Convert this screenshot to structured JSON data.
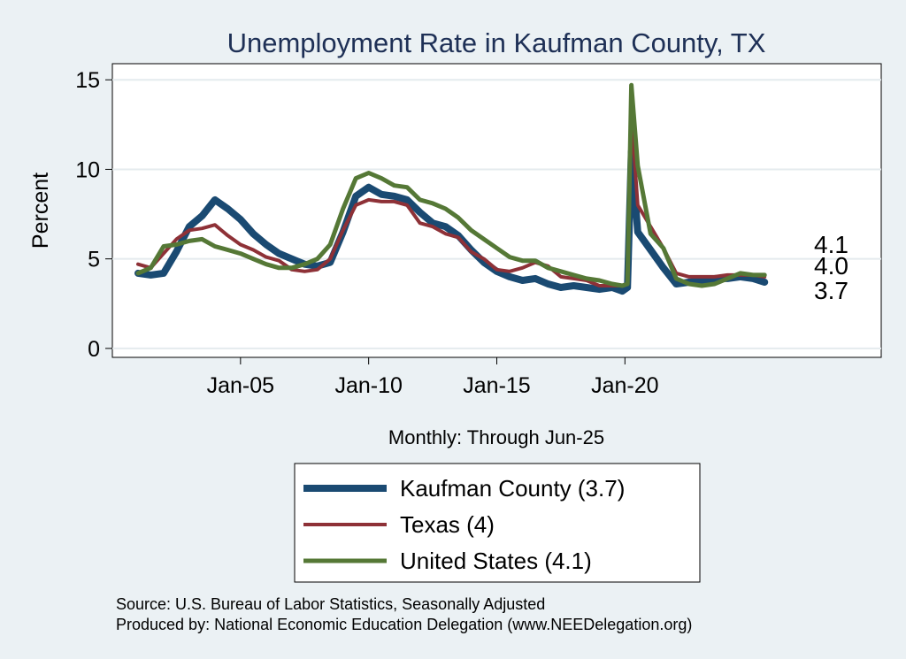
{
  "chart_data": {
    "type": "line",
    "title": "Unemployment Rate in Kaufman  County, TX",
    "xlabel": "Monthly: Through Jun-25",
    "ylabel": "Percent",
    "xlim": [
      2000.0,
      2030.0
    ],
    "ylim": [
      -0.5,
      15.9
    ],
    "y_ticks": [
      0,
      5,
      10,
      15
    ],
    "x_ticks": [
      {
        "label": "Jan-05",
        "value": 2005.0
      },
      {
        "label": "Jan-10",
        "value": 2010.0
      },
      {
        "label": "Jan-15",
        "value": 2015.0
      },
      {
        "label": "Jan-20",
        "value": 2020.0
      }
    ],
    "grid": true,
    "legend_position": "bottom",
    "series": [
      {
        "name": "Kaufman  County (3.7)",
        "color": "#1a4a72",
        "end_label": "3.7",
        "points": [
          [
            2001.0,
            4.2
          ],
          [
            2001.5,
            4.1
          ],
          [
            2002.0,
            4.2
          ],
          [
            2002.5,
            5.4
          ],
          [
            2003.0,
            6.8
          ],
          [
            2003.5,
            7.4
          ],
          [
            2004.0,
            8.3
          ],
          [
            2004.5,
            7.8
          ],
          [
            2005.0,
            7.2
          ],
          [
            2005.5,
            6.4
          ],
          [
            2006.0,
            5.8
          ],
          [
            2006.5,
            5.3
          ],
          [
            2007.0,
            5.0
          ],
          [
            2007.5,
            4.7
          ],
          [
            2008.0,
            4.6
          ],
          [
            2008.5,
            4.8
          ],
          [
            2009.0,
            6.5
          ],
          [
            2009.5,
            8.5
          ],
          [
            2010.0,
            9.0
          ],
          [
            2010.5,
            8.6
          ],
          [
            2011.0,
            8.5
          ],
          [
            2011.5,
            8.3
          ],
          [
            2012.0,
            7.6
          ],
          [
            2012.5,
            7.0
          ],
          [
            2013.0,
            6.8
          ],
          [
            2013.5,
            6.3
          ],
          [
            2014.0,
            5.5
          ],
          [
            2014.5,
            4.8
          ],
          [
            2015.0,
            4.3
          ],
          [
            2015.5,
            4.0
          ],
          [
            2016.0,
            3.8
          ],
          [
            2016.5,
            3.9
          ],
          [
            2017.0,
            3.6
          ],
          [
            2017.5,
            3.4
          ],
          [
            2018.0,
            3.5
          ],
          [
            2018.5,
            3.4
          ],
          [
            2019.0,
            3.3
          ],
          [
            2019.5,
            3.4
          ],
          [
            2019.9,
            3.2
          ],
          [
            2020.1,
            3.4
          ],
          [
            2020.25,
            11.0
          ],
          [
            2020.5,
            6.5
          ],
          [
            2021.0,
            5.5
          ],
          [
            2021.5,
            4.5
          ],
          [
            2022.0,
            3.6
          ],
          [
            2022.5,
            3.7
          ],
          [
            2023.0,
            3.8
          ],
          [
            2023.5,
            3.9
          ],
          [
            2024.0,
            3.9
          ],
          [
            2024.5,
            4.0
          ],
          [
            2025.0,
            3.9
          ],
          [
            2025.45,
            3.7
          ]
        ]
      },
      {
        "name": "Texas (4)",
        "color": "#8e3137",
        "end_label": "4.0",
        "points": [
          [
            2001.0,
            4.7
          ],
          [
            2001.5,
            4.5
          ],
          [
            2002.0,
            5.3
          ],
          [
            2002.5,
            6.1
          ],
          [
            2003.0,
            6.6
          ],
          [
            2003.5,
            6.7
          ],
          [
            2004.0,
            6.9
          ],
          [
            2004.5,
            6.3
          ],
          [
            2005.0,
            5.8
          ],
          [
            2005.5,
            5.5
          ],
          [
            2006.0,
            5.1
          ],
          [
            2006.5,
            4.9
          ],
          [
            2007.0,
            4.4
          ],
          [
            2007.5,
            4.3
          ],
          [
            2008.0,
            4.4
          ],
          [
            2008.5,
            5.0
          ],
          [
            2009.0,
            6.6
          ],
          [
            2009.5,
            8.0
          ],
          [
            2010.0,
            8.3
          ],
          [
            2010.5,
            8.2
          ],
          [
            2011.0,
            8.2
          ],
          [
            2011.5,
            8.0
          ],
          [
            2012.0,
            7.0
          ],
          [
            2012.5,
            6.8
          ],
          [
            2013.0,
            6.4
          ],
          [
            2013.5,
            6.2
          ],
          [
            2014.0,
            5.4
          ],
          [
            2014.5,
            5.0
          ],
          [
            2015.0,
            4.4
          ],
          [
            2015.5,
            4.3
          ],
          [
            2016.0,
            4.5
          ],
          [
            2016.5,
            4.8
          ],
          [
            2017.0,
            4.6
          ],
          [
            2017.5,
            4.0
          ],
          [
            2018.0,
            3.9
          ],
          [
            2018.5,
            3.8
          ],
          [
            2019.0,
            3.5
          ],
          [
            2019.5,
            3.5
          ],
          [
            2019.9,
            3.5
          ],
          [
            2020.1,
            3.6
          ],
          [
            2020.25,
            13.0
          ],
          [
            2020.5,
            8.0
          ],
          [
            2021.0,
            6.8
          ],
          [
            2021.5,
            5.6
          ],
          [
            2022.0,
            4.2
          ],
          [
            2022.5,
            4.0
          ],
          [
            2023.0,
            4.0
          ],
          [
            2023.5,
            4.0
          ],
          [
            2024.0,
            4.1
          ],
          [
            2024.5,
            4.1
          ],
          [
            2025.0,
            4.1
          ],
          [
            2025.45,
            4.0
          ]
        ]
      },
      {
        "name": "United States (4.1)",
        "color": "#557836",
        "end_label": "4.1",
        "points": [
          [
            2001.0,
            4.2
          ],
          [
            2001.5,
            4.5
          ],
          [
            2002.0,
            5.7
          ],
          [
            2002.5,
            5.8
          ],
          [
            2003.0,
            6.0
          ],
          [
            2003.5,
            6.1
          ],
          [
            2004.0,
            5.7
          ],
          [
            2004.5,
            5.5
          ],
          [
            2005.0,
            5.3
          ],
          [
            2005.5,
            5.0
          ],
          [
            2006.0,
            4.7
          ],
          [
            2006.5,
            4.5
          ],
          [
            2007.0,
            4.5
          ],
          [
            2007.5,
            4.7
          ],
          [
            2008.0,
            5.0
          ],
          [
            2008.5,
            5.8
          ],
          [
            2009.0,
            7.8
          ],
          [
            2009.5,
            9.5
          ],
          [
            2010.0,
            9.8
          ],
          [
            2010.5,
            9.5
          ],
          [
            2011.0,
            9.1
          ],
          [
            2011.5,
            9.0
          ],
          [
            2012.0,
            8.3
          ],
          [
            2012.5,
            8.1
          ],
          [
            2013.0,
            7.8
          ],
          [
            2013.5,
            7.3
          ],
          [
            2014.0,
            6.6
          ],
          [
            2014.5,
            6.1
          ],
          [
            2015.0,
            5.6
          ],
          [
            2015.5,
            5.1
          ],
          [
            2016.0,
            4.9
          ],
          [
            2016.5,
            4.9
          ],
          [
            2017.0,
            4.5
          ],
          [
            2017.5,
            4.3
          ],
          [
            2018.0,
            4.1
          ],
          [
            2018.5,
            3.9
          ],
          [
            2019.0,
            3.8
          ],
          [
            2019.5,
            3.6
          ],
          [
            2019.9,
            3.5
          ],
          [
            2020.1,
            3.6
          ],
          [
            2020.25,
            14.7
          ],
          [
            2020.5,
            10.2
          ],
          [
            2021.0,
            6.4
          ],
          [
            2021.5,
            5.6
          ],
          [
            2022.0,
            3.9
          ],
          [
            2022.5,
            3.6
          ],
          [
            2023.0,
            3.5
          ],
          [
            2023.5,
            3.6
          ],
          [
            2024.0,
            3.9
          ],
          [
            2024.5,
            4.2
          ],
          [
            2025.0,
            4.1
          ],
          [
            2025.45,
            4.1
          ]
        ]
      }
    ]
  },
  "notes": {
    "source": "Source: U.S. Bureau of Labor Statistics, Seasonally Adjusted",
    "producer": "Produced by: National Economic Education Delegation (www.NEEDelegation.org)"
  }
}
